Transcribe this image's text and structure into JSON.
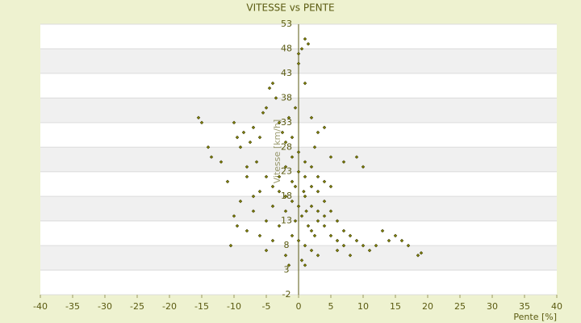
{
  "chart_data": {
    "type": "scatter",
    "title": "VITESSE vs PENTE",
    "x_label": "Pente [%]",
    "y_label": "Vitesse [km/h]",
    "xlim": [
      -40,
      40
    ],
    "xticks": [
      -40,
      -35,
      -30,
      -25,
      -20,
      -15,
      -10,
      -5,
      0,
      5,
      10,
      15,
      20,
      25,
      30,
      35,
      40
    ],
    "ylim": [
      -2,
      53
    ],
    "yticks": [
      -2,
      3,
      8,
      13,
      18,
      23,
      28,
      33,
      38,
      43,
      48,
      53
    ],
    "grid": true,
    "x": [
      -15.5,
      -15,
      -14,
      -12,
      -13.5,
      -11,
      -10,
      -9.5,
      -9,
      -8.5,
      -8,
      -7.5,
      -7,
      -6.5,
      -6,
      -5.5,
      -5,
      -4.5,
      -4,
      -3.5,
      -3,
      -2.5,
      -2,
      -1.5,
      -1,
      -0.5,
      0,
      0.5,
      1,
      1.5,
      0,
      1,
      2,
      3,
      4,
      2.5,
      5,
      7,
      9,
      10,
      -10,
      -10.5,
      -9.5,
      -9,
      -8,
      -7,
      -6,
      -5,
      -4,
      -3,
      -2,
      -1,
      0,
      1,
      2,
      3,
      4,
      5,
      6,
      7,
      8,
      9,
      10,
      11,
      12,
      13,
      14,
      15,
      16,
      18.5,
      19,
      17,
      -1,
      0,
      1,
      2,
      3,
      -2,
      -1.5,
      0.5,
      2,
      3,
      4,
      5,
      6,
      -3,
      -2,
      -1,
      0,
      1,
      2,
      3,
      4,
      -4,
      -3,
      -2,
      -1,
      0,
      1,
      2,
      3,
      4,
      5,
      -5,
      -6,
      -7,
      -8,
      -0.5,
      0.5,
      1.5,
      2.5,
      6,
      7,
      8,
      -4,
      -5,
      1,
      -0.5,
      0.8,
      1.2
    ],
    "series": [
      {
        "name": "Vitesse",
        "color": "#8a8a00",
        "values": [
          34,
          33,
          28,
          25,
          26,
          21,
          33,
          30,
          28,
          31,
          22,
          29,
          32,
          25,
          30,
          35,
          36,
          40,
          41,
          38,
          33,
          31,
          29,
          34,
          30,
          36,
          47,
          48,
          50,
          49,
          45,
          41,
          34,
          31,
          32,
          28,
          26,
          25,
          26,
          24,
          14,
          8,
          12,
          17,
          11,
          15,
          10,
          13,
          16,
          19,
          18,
          21,
          23,
          22,
          20,
          19,
          17,
          15,
          13,
          11,
          10,
          9,
          8,
          7,
          8,
          11,
          9,
          10,
          9,
          6,
          6.5,
          8,
          10,
          9,
          8,
          7,
          6,
          6,
          4,
          5,
          11,
          13,
          12,
          10,
          9,
          12,
          15,
          17,
          16,
          18,
          16,
          15,
          14,
          20,
          22,
          24,
          26,
          27,
          25,
          24,
          22,
          21,
          20,
          22,
          19,
          18,
          24,
          13,
          14,
          12,
          10,
          7,
          8,
          6,
          9,
          7,
          4,
          20,
          19,
          15
        ]
      }
    ]
  }
}
